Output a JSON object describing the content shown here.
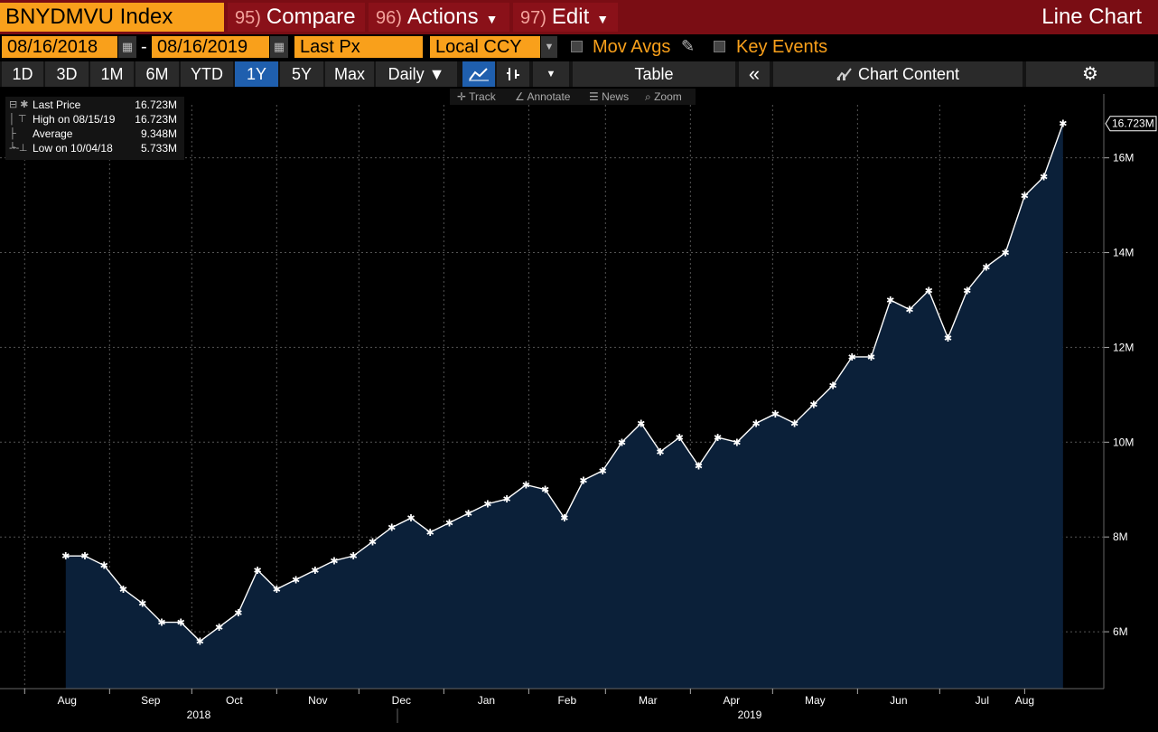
{
  "header": {
    "ticker": "BNYDMVU Index",
    "compare_num": "95)",
    "compare_label": "Compare",
    "actions_num": "96)",
    "actions_label": "Actions",
    "edit_num": "97)",
    "edit_label": "Edit",
    "chart_type_title": "Line Chart"
  },
  "controls": {
    "start_date": "08/16/2018",
    "end_date": "08/16/2019",
    "date_separator": "-",
    "field": "Last Px",
    "currency": "Local CCY",
    "mov_avgs_label": "Mov Avgs",
    "key_events_label": "Key Events"
  },
  "toolbar": {
    "periods": [
      "1D",
      "3D",
      "1M",
      "6M",
      "YTD",
      "1Y",
      "5Y",
      "Max"
    ],
    "active_period": "1Y",
    "frequency": "Daily ▼",
    "table_label": "Table",
    "collapse_label": "«",
    "chart_content_label": "Chart Content",
    "settings_icon": "gear-icon"
  },
  "hover_tools": {
    "track": "Track",
    "annotate": "Annotate",
    "news": "News",
    "zoom": "Zoom"
  },
  "legend": {
    "rows": [
      {
        "name": "Last Price",
        "value": "16.723M"
      },
      {
        "name": "High on 08/15/19",
        "value": "16.723M"
      },
      {
        "name": "Average",
        "value": "9.348M"
      },
      {
        "name": "Low on 10/04/18",
        "value": "5.733M"
      }
    ]
  },
  "colors": {
    "accent": "#f9a01b",
    "header_bg": "#7a0d14",
    "active_tab": "#1f5fae",
    "area_fill": "#0b2039",
    "line": "#ffffff"
  },
  "chart_data": {
    "type": "area",
    "series": [
      {
        "name": "Last Price"
      }
    ],
    "x": [
      "2018-08-16",
      "2018-08-23",
      "2018-08-30",
      "2018-09-06",
      "2018-09-13",
      "2018-09-20",
      "2018-09-27",
      "2018-10-04",
      "2018-10-11",
      "2018-10-18",
      "2018-10-25",
      "2018-11-01",
      "2018-11-08",
      "2018-11-15",
      "2018-11-22",
      "2018-11-29",
      "2018-12-06",
      "2018-12-13",
      "2018-12-20",
      "2018-12-27",
      "2019-01-03",
      "2019-01-10",
      "2019-01-17",
      "2019-01-24",
      "2019-01-31",
      "2019-02-07",
      "2019-02-14",
      "2019-02-21",
      "2019-02-28",
      "2019-03-07",
      "2019-03-14",
      "2019-03-21",
      "2019-03-28",
      "2019-04-04",
      "2019-04-11",
      "2019-04-18",
      "2019-04-25",
      "2019-05-02",
      "2019-05-09",
      "2019-05-16",
      "2019-05-23",
      "2019-05-30",
      "2019-06-06",
      "2019-06-13",
      "2019-06-20",
      "2019-06-27",
      "2019-07-04",
      "2019-07-11",
      "2019-07-18",
      "2019-07-25",
      "2019-08-01",
      "2019-08-08",
      "2019-08-15"
    ],
    "y": [
      7.6,
      7.6,
      7.4,
      6.9,
      6.6,
      6.2,
      6.2,
      5.8,
      6.1,
      6.4,
      7.3,
      6.9,
      7.1,
      7.3,
      7.5,
      7.6,
      7.9,
      8.2,
      8.4,
      8.1,
      8.3,
      8.5,
      8.7,
      8.8,
      9.1,
      9.0,
      8.4,
      9.2,
      9.4,
      10.0,
      10.4,
      9.8,
      10.1,
      9.5,
      10.1,
      10.0,
      10.4,
      10.6,
      10.4,
      10.8,
      11.2,
      11.8,
      11.8,
      13.0,
      12.8,
      13.2,
      12.2,
      13.2,
      13.7,
      14.0,
      15.2,
      15.6,
      16.723
    ],
    "ylim": [
      4.8,
      17.5
    ],
    "y_ticks": [
      "6M",
      "8M",
      "10M",
      "12M",
      "14M",
      "16M"
    ],
    "y_tick_values": [
      6,
      8,
      10,
      12,
      14,
      16
    ],
    "x_month_labels": [
      "Aug",
      "Sep",
      "Oct",
      "Nov",
      "Dec",
      "Jan",
      "Feb",
      "Mar",
      "Apr",
      "May",
      "Jun",
      "Jul",
      "Aug"
    ],
    "x_month_dates": [
      "2018-08-01",
      "2018-09-01",
      "2018-10-01",
      "2018-11-01",
      "2018-12-01",
      "2019-01-01",
      "2019-02-01",
      "2019-03-01",
      "2019-04-01",
      "2019-05-01",
      "2019-06-01",
      "2019-07-01",
      "2019-08-01"
    ],
    "x_year_labels": [
      "2018",
      "2019"
    ],
    "last_value_label": "16.723M",
    "grid": true
  }
}
